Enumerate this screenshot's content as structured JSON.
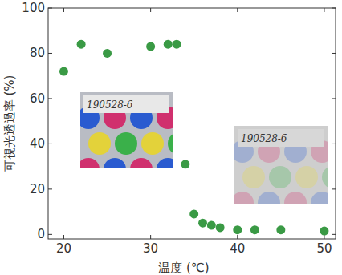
{
  "chart_data": {
    "type": "scatter",
    "x_label": "温度 (℃)",
    "y_label": "可視光透過率 (%)",
    "x": [
      20,
      22,
      25,
      30,
      32,
      33,
      34,
      35,
      36,
      37,
      38,
      40,
      42,
      45,
      50
    ],
    "values": [
      72,
      84,
      80,
      83,
      84,
      84,
      31,
      9,
      5,
      4,
      3,
      2,
      2,
      2,
      1.5
    ],
    "color": "#3a9a45",
    "marker": "circle",
    "xlim": [
      18.2,
      51.3
    ],
    "ylim": [
      -2,
      100
    ],
    "xticks": [
      20,
      30,
      40,
      50
    ],
    "yticks": [
      0,
      20,
      40,
      60,
      80,
      100
    ],
    "grid": false,
    "annotations": [
      "190528-6",
      "190528-6"
    ]
  }
}
